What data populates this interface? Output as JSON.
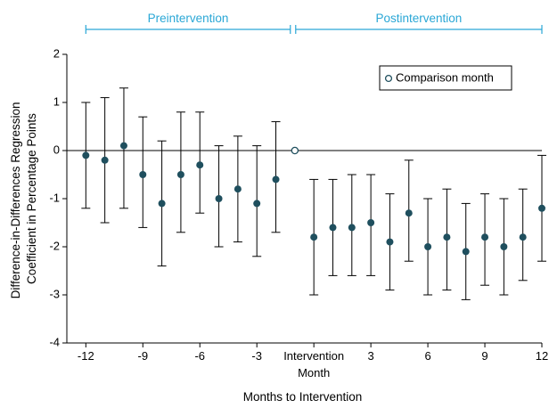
{
  "colors": {
    "bracket": "#2aa7d6",
    "point": "#1f4f5e",
    "axis": "#000000",
    "text": "#000000"
  },
  "chart_data": {
    "type": "scatter",
    "xlabel": "Months to Intervention",
    "ylabel_lines": [
      "Difference-in-Differences Regression",
      "Coefficient in Percentage Points"
    ],
    "ylim": [
      -4,
      2
    ],
    "yticks": [
      2,
      1,
      0,
      -1,
      -2,
      -3,
      -4
    ],
    "xlim": [
      -13,
      12
    ],
    "xticks": [
      {
        "x": -12,
        "label": "-12"
      },
      {
        "x": -9,
        "label": "-9"
      },
      {
        "x": -6,
        "label": "-6"
      },
      {
        "x": -3,
        "label": "-3"
      },
      {
        "x": 0,
        "label": "Intervention",
        "label2": "Month"
      },
      {
        "x": 3,
        "label": "3"
      },
      {
        "x": 6,
        "label": "6"
      },
      {
        "x": 9,
        "label": "9"
      },
      {
        "x": 12,
        "label": "12"
      }
    ],
    "zero_line": true,
    "periods": [
      {
        "label": "Preintervention",
        "from": -12,
        "to": -1
      },
      {
        "label": "Postintervention",
        "from": 0,
        "to": 12
      }
    ],
    "legend": {
      "label": "Comparison month",
      "placement": "top-right"
    },
    "comparison_point": {
      "x": -1,
      "y": 0
    },
    "points": [
      {
        "x": -12,
        "y": -0.1,
        "lo": -1.2,
        "hi": 1.0
      },
      {
        "x": -11,
        "y": -0.2,
        "lo": -1.5,
        "hi": 1.1
      },
      {
        "x": -10,
        "y": 0.1,
        "lo": -1.2,
        "hi": 1.3
      },
      {
        "x": -9,
        "y": -0.5,
        "lo": -1.6,
        "hi": 0.7
      },
      {
        "x": -8,
        "y": -1.1,
        "lo": -2.4,
        "hi": 0.2
      },
      {
        "x": -7,
        "y": -0.5,
        "lo": -1.7,
        "hi": 0.8
      },
      {
        "x": -6,
        "y": -0.3,
        "lo": -1.3,
        "hi": 0.8
      },
      {
        "x": -5,
        "y": -1.0,
        "lo": -2.0,
        "hi": 0.1
      },
      {
        "x": -4,
        "y": -0.8,
        "lo": -1.9,
        "hi": 0.3
      },
      {
        "x": -3,
        "y": -1.1,
        "lo": -2.2,
        "hi": 0.1
      },
      {
        "x": -2,
        "y": -0.6,
        "lo": -1.7,
        "hi": 0.6
      },
      {
        "x": 0,
        "y": -1.8,
        "lo": -3.0,
        "hi": -0.6
      },
      {
        "x": 1,
        "y": -1.6,
        "lo": -2.6,
        "hi": -0.6
      },
      {
        "x": 2,
        "y": -1.6,
        "lo": -2.6,
        "hi": -0.5
      },
      {
        "x": 3,
        "y": -1.5,
        "lo": -2.6,
        "hi": -0.5
      },
      {
        "x": 4,
        "y": -1.9,
        "lo": -2.9,
        "hi": -0.9
      },
      {
        "x": 5,
        "y": -1.3,
        "lo": -2.3,
        "hi": -0.2
      },
      {
        "x": 6,
        "y": -2.0,
        "lo": -3.0,
        "hi": -1.0
      },
      {
        "x": 7,
        "y": -1.8,
        "lo": -2.9,
        "hi": -0.8
      },
      {
        "x": 8,
        "y": -2.1,
        "lo": -3.1,
        "hi": -1.1
      },
      {
        "x": 9,
        "y": -1.8,
        "lo": -2.8,
        "hi": -0.9
      },
      {
        "x": 10,
        "y": -2.0,
        "lo": -3.0,
        "hi": -1.0
      },
      {
        "x": 11,
        "y": -1.8,
        "lo": -2.7,
        "hi": -0.8
      },
      {
        "x": 12,
        "y": -1.2,
        "lo": -2.3,
        "hi": -0.1
      }
    ]
  }
}
